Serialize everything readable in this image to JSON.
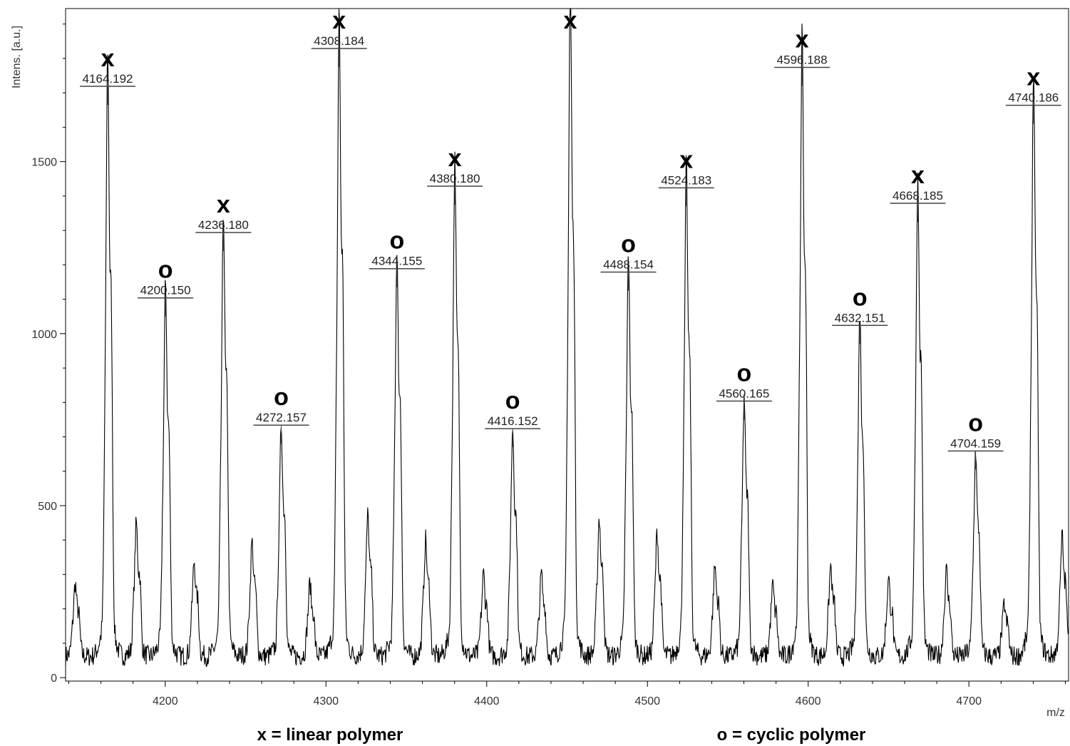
{
  "chart_data": {
    "type": "line",
    "xlabel": "m/z",
    "ylabel": "Intens. [a.u.]",
    "xlim": [
      4138,
      4762
    ],
    "ylim": [
      -10,
      1945
    ],
    "x_ticks": [
      4200,
      4300,
      4400,
      4500,
      4600,
      4700
    ],
    "y_ticks": [
      0,
      500,
      1000,
      1500
    ],
    "baseline": 60,
    "series": [
      {
        "name": "",
        "peaks": [
          {
            "x": 4144,
            "y": 255
          },
          {
            "x": 4164.192,
            "y": 1665,
            "label": "4164.192",
            "marker": "x"
          },
          {
            "x": 4182,
            "y": 415
          },
          {
            "x": 4200.15,
            "y": 1050,
            "label": "4200.150",
            "marker": "o"
          },
          {
            "x": 4218,
            "y": 315
          },
          {
            "x": 4236.18,
            "y": 1240,
            "label": "4236.180",
            "marker": "x"
          },
          {
            "x": 4254,
            "y": 365
          },
          {
            "x": 4272.157,
            "y": 680,
            "label": "4272.157",
            "marker": "o"
          },
          {
            "x": 4290,
            "y": 255
          },
          {
            "x": 4308.184,
            "y": 1775,
            "label": "4308.184",
            "marker": "x"
          },
          {
            "x": 4326,
            "y": 435
          },
          {
            "x": 4344.155,
            "y": 1135,
            "label": "4344.155",
            "marker": "o"
          },
          {
            "x": 4362,
            "y": 370
          },
          {
            "x": 4380.18,
            "y": 1375,
            "label": "4380.180",
            "marker": "x"
          },
          {
            "x": 4398,
            "y": 280
          },
          {
            "x": 4416.152,
            "y": 670,
            "label": "4416.152",
            "marker": "o"
          },
          {
            "x": 4434,
            "y": 280
          },
          {
            "x": 4452,
            "y": 1865,
            "marker": "x"
          },
          {
            "x": 4470,
            "y": 430
          },
          {
            "x": 4488.154,
            "y": 1125,
            "label": "4488.154",
            "marker": "o"
          },
          {
            "x": 4506,
            "y": 390
          },
          {
            "x": 4524.183,
            "y": 1370,
            "label": "4524.183",
            "marker": "x"
          },
          {
            "x": 4542,
            "y": 300
          },
          {
            "x": 4560.165,
            "y": 750,
            "label": "4560.165",
            "marker": "o"
          },
          {
            "x": 4578,
            "y": 250
          },
          {
            "x": 4596.188,
            "y": 1720,
            "label": "4596.188",
            "marker": "x"
          },
          {
            "x": 4614,
            "y": 300
          },
          {
            "x": 4632.151,
            "y": 970,
            "label": "4632.151",
            "marker": "o"
          },
          {
            "x": 4650,
            "y": 265
          },
          {
            "x": 4668.185,
            "y": 1325,
            "label": "4668.185",
            "marker": "x"
          },
          {
            "x": 4686,
            "y": 290
          },
          {
            "x": 4704.159,
            "y": 605,
            "label": "4704.159",
            "marker": "o"
          },
          {
            "x": 4722,
            "y": 200
          },
          {
            "x": 4740.186,
            "y": 1610,
            "label": "4740.186",
            "marker": "x"
          },
          {
            "x": 4758,
            "y": 380
          }
        ]
      }
    ],
    "legend": [
      {
        "symbol": "x",
        "text": "x = linear polymer"
      },
      {
        "symbol": "o",
        "text": "o = cyclic polymer"
      }
    ]
  }
}
